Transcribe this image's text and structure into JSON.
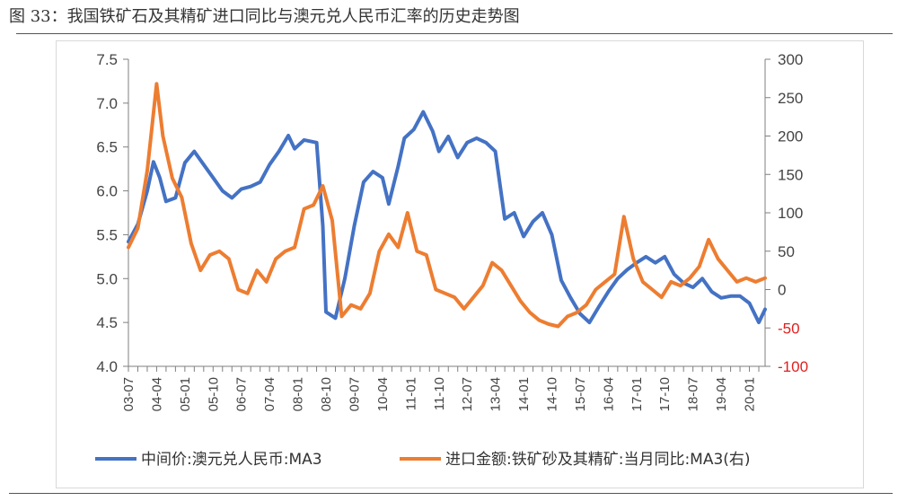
{
  "figure": {
    "title": "图 33：我国铁矿石及其精矿进口同比与澳元兑人民币汇率的历史走势图"
  },
  "chart_data": {
    "type": "line",
    "x_ticks": [
      "03-07",
      "04-04",
      "05-01",
      "05-10",
      "06-07",
      "07-04",
      "08-01",
      "08-10",
      "09-07",
      "10-04",
      "11-01",
      "11-10",
      "12-07",
      "13-04",
      "14-01",
      "14-10",
      "15-07",
      "16-04",
      "17-01",
      "17-10",
      "18-07",
      "19-04",
      "20-01"
    ],
    "x_range": [
      "2003-07",
      "2020-06"
    ],
    "y_left": {
      "range": [
        4.0,
        7.5
      ],
      "ticks": [
        "4.0",
        "4.5",
        "5.0",
        "5.5",
        "6.0",
        "6.5",
        "7.0",
        "7.5"
      ]
    },
    "y_right": {
      "range": [
        -100,
        300
      ],
      "ticks": [
        "300",
        "250",
        "200",
        "150",
        "100",
        "50",
        "0",
        "-50",
        "-100"
      ],
      "negative_color": "#e02020"
    },
    "grid": false,
    "legend": "bottom",
    "series": [
      {
        "name": "中间价:澳元兑人民币:MA3",
        "axis": "left",
        "color": "#4472c4",
        "points": [
          [
            "2003-07",
            5.42
          ],
          [
            "2003-10",
            5.62
          ],
          [
            "2004-01",
            6.0
          ],
          [
            "2004-03",
            6.33
          ],
          [
            "2004-05",
            6.15
          ],
          [
            "2004-07",
            5.88
          ],
          [
            "2004-10",
            5.92
          ],
          [
            "2005-01",
            6.32
          ],
          [
            "2005-04",
            6.45
          ],
          [
            "2005-07",
            6.3
          ],
          [
            "2005-10",
            6.15
          ],
          [
            "2006-01",
            6.0
          ],
          [
            "2006-04",
            5.92
          ],
          [
            "2006-07",
            6.02
          ],
          [
            "2006-10",
            6.05
          ],
          [
            "2007-01",
            6.1
          ],
          [
            "2007-04",
            6.3
          ],
          [
            "2007-07",
            6.45
          ],
          [
            "2007-10",
            6.63
          ],
          [
            "2007-12",
            6.48
          ],
          [
            "2008-03",
            6.58
          ],
          [
            "2008-07",
            6.55
          ],
          [
            "2008-09",
            5.6
          ],
          [
            "2008-10",
            4.62
          ],
          [
            "2009-01",
            4.55
          ],
          [
            "2009-04",
            5.0
          ],
          [
            "2009-07",
            5.6
          ],
          [
            "2009-10",
            6.1
          ],
          [
            "2010-01",
            6.22
          ],
          [
            "2010-04",
            6.15
          ],
          [
            "2010-06",
            5.85
          ],
          [
            "2010-09",
            6.28
          ],
          [
            "2010-11",
            6.6
          ],
          [
            "2011-02",
            6.7
          ],
          [
            "2011-05",
            6.9
          ],
          [
            "2011-08",
            6.68
          ],
          [
            "2011-10",
            6.45
          ],
          [
            "2012-01",
            6.62
          ],
          [
            "2012-04",
            6.38
          ],
          [
            "2012-07",
            6.55
          ],
          [
            "2012-10",
            6.6
          ],
          [
            "2013-01",
            6.55
          ],
          [
            "2013-04",
            6.45
          ],
          [
            "2013-07",
            5.68
          ],
          [
            "2013-10",
            5.75
          ],
          [
            "2014-01",
            5.48
          ],
          [
            "2014-04",
            5.65
          ],
          [
            "2014-07",
            5.75
          ],
          [
            "2014-10",
            5.5
          ],
          [
            "2015-01",
            4.98
          ],
          [
            "2015-04",
            4.78
          ],
          [
            "2015-07",
            4.6
          ],
          [
            "2015-10",
            4.5
          ],
          [
            "2016-01",
            4.68
          ],
          [
            "2016-04",
            4.85
          ],
          [
            "2016-07",
            5.0
          ],
          [
            "2016-10",
            5.1
          ],
          [
            "2017-01",
            5.18
          ],
          [
            "2017-04",
            5.25
          ],
          [
            "2017-07",
            5.18
          ],
          [
            "2017-10",
            5.25
          ],
          [
            "2018-01",
            5.05
          ],
          [
            "2018-04",
            4.95
          ],
          [
            "2018-07",
            4.9
          ],
          [
            "2018-10",
            5.0
          ],
          [
            "2019-01",
            4.85
          ],
          [
            "2019-04",
            4.78
          ],
          [
            "2019-07",
            4.8
          ],
          [
            "2019-10",
            4.8
          ],
          [
            "2020-01",
            4.72
          ],
          [
            "2020-04",
            4.5
          ],
          [
            "2020-06",
            4.65
          ]
        ]
      },
      {
        "name": "进口金额:铁矿砂及其精矿:当月同比:MA3(右)",
        "axis": "right",
        "color": "#ed7d31",
        "points": [
          [
            "2003-07",
            55
          ],
          [
            "2003-10",
            80
          ],
          [
            "2004-01",
            155
          ],
          [
            "2004-04",
            268
          ],
          [
            "2004-06",
            200
          ],
          [
            "2004-09",
            145
          ],
          [
            "2004-12",
            120
          ],
          [
            "2005-03",
            60
          ],
          [
            "2005-06",
            25
          ],
          [
            "2005-09",
            45
          ],
          [
            "2005-12",
            50
          ],
          [
            "2006-03",
            40
          ],
          [
            "2006-06",
            0
          ],
          [
            "2006-09",
            -5
          ],
          [
            "2006-12",
            25
          ],
          [
            "2007-03",
            10
          ],
          [
            "2007-06",
            40
          ],
          [
            "2007-09",
            50
          ],
          [
            "2007-12",
            55
          ],
          [
            "2008-03",
            105
          ],
          [
            "2008-06",
            110
          ],
          [
            "2008-09",
            135
          ],
          [
            "2008-12",
            90
          ],
          [
            "2009-03",
            -35
          ],
          [
            "2009-06",
            -20
          ],
          [
            "2009-09",
            -25
          ],
          [
            "2009-12",
            -5
          ],
          [
            "2010-03",
            50
          ],
          [
            "2010-06",
            72
          ],
          [
            "2010-09",
            55
          ],
          [
            "2010-12",
            100
          ],
          [
            "2011-03",
            50
          ],
          [
            "2011-06",
            45
          ],
          [
            "2011-09",
            0
          ],
          [
            "2011-12",
            -5
          ],
          [
            "2012-03",
            -10
          ],
          [
            "2012-06",
            -25
          ],
          [
            "2012-09",
            -10
          ],
          [
            "2012-12",
            5
          ],
          [
            "2013-03",
            35
          ],
          [
            "2013-06",
            25
          ],
          [
            "2013-09",
            5
          ],
          [
            "2013-12",
            -15
          ],
          [
            "2014-03",
            -30
          ],
          [
            "2014-06",
            -40
          ],
          [
            "2014-09",
            -45
          ],
          [
            "2014-12",
            -48
          ],
          [
            "2015-03",
            -35
          ],
          [
            "2015-06",
            -30
          ],
          [
            "2015-09",
            -20
          ],
          [
            "2015-12",
            0
          ],
          [
            "2016-03",
            10
          ],
          [
            "2016-06",
            20
          ],
          [
            "2016-09",
            95
          ],
          [
            "2016-12",
            40
          ],
          [
            "2017-03",
            10
          ],
          [
            "2017-06",
            0
          ],
          [
            "2017-09",
            -10
          ],
          [
            "2017-12",
            10
          ],
          [
            "2018-03",
            5
          ],
          [
            "2018-06",
            15
          ],
          [
            "2018-09",
            30
          ],
          [
            "2018-12",
            65
          ],
          [
            "2019-03",
            40
          ],
          [
            "2019-06",
            25
          ],
          [
            "2019-09",
            10
          ],
          [
            "2019-12",
            15
          ],
          [
            "2020-03",
            10
          ],
          [
            "2020-06",
            15
          ]
        ]
      }
    ]
  }
}
